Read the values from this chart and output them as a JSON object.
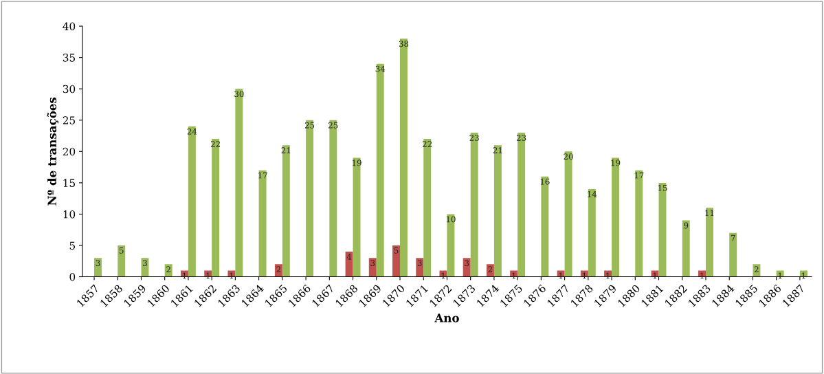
{
  "chart_data": {
    "type": "bar",
    "xlabel": "Ano",
    "ylabel": "Nº de transações",
    "categories": [
      "1857",
      "1858",
      "1859",
      "1860",
      "1861",
      "1862",
      "1863",
      "1864",
      "1865",
      "1866",
      "1867",
      "1868",
      "1869",
      "1870",
      "1871",
      "1872",
      "1873",
      "1874",
      "1875",
      "1876",
      "1877",
      "1878",
      "1879",
      "1880",
      "1881",
      "1882",
      "1883",
      "1884",
      "1885",
      "1886",
      "1887"
    ],
    "series": [
      {
        "color": "#c0504d",
        "values": [
          null,
          null,
          null,
          null,
          1,
          1,
          1,
          null,
          2,
          null,
          null,
          4,
          3,
          5,
          3,
          1,
          3,
          2,
          1,
          null,
          1,
          1,
          1,
          null,
          1,
          null,
          1,
          null,
          null,
          null,
          null
        ]
      },
      {
        "color": "#9bbb59",
        "values": [
          3,
          5,
          3,
          2,
          24,
          22,
          30,
          17,
          21,
          25,
          25,
          19,
          34,
          38,
          22,
          10,
          23,
          21,
          23,
          16,
          20,
          14,
          19,
          17,
          15,
          9,
          11,
          7,
          2,
          1,
          1
        ]
      }
    ],
    "ylim": [
      0,
      40
    ],
    "yticks": [
      0,
      5,
      10,
      15,
      20,
      25,
      30,
      35,
      40
    ],
    "grid": false,
    "legend": false,
    "data_labels": true
  }
}
